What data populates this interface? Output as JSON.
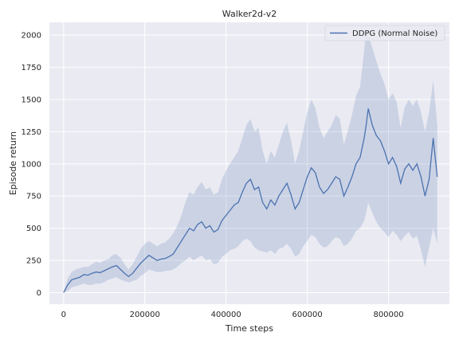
{
  "chart_data": {
    "type": "line",
    "title": "Walker2d-v2",
    "xlabel": "Time steps",
    "ylabel": "Episode return",
    "xlim": [
      -35000,
      950000
    ],
    "ylim": [
      -90,
      2100
    ],
    "x_ticks": [
      0,
      200000,
      400000,
      600000,
      800000
    ],
    "x_tick_labels": [
      "0",
      "200000",
      "400000",
      "600000",
      "800000"
    ],
    "y_ticks": [
      0,
      250,
      500,
      750,
      1000,
      1250,
      1500,
      1750,
      2000
    ],
    "y_tick_labels": [
      "0",
      "250",
      "500",
      "750",
      "1000",
      "1250",
      "1500",
      "1750",
      "2000"
    ],
    "grid": true,
    "legend_position": "top-right",
    "colors": {
      "background": "#eaeaf2",
      "grid": "#ffffff",
      "line": "#4c72b0",
      "band": "#4c72b0"
    },
    "series": [
      {
        "name": "DDPG (Normal Noise)",
        "x": [
          0,
          10000,
          20000,
          30000,
          40000,
          50000,
          60000,
          70000,
          80000,
          90000,
          100000,
          110000,
          120000,
          130000,
          140000,
          150000,
          160000,
          170000,
          180000,
          190000,
          200000,
          210000,
          220000,
          230000,
          240000,
          250000,
          260000,
          270000,
          280000,
          290000,
          300000,
          310000,
          320000,
          330000,
          340000,
          350000,
          360000,
          370000,
          380000,
          390000,
          400000,
          410000,
          420000,
          430000,
          440000,
          450000,
          460000,
          470000,
          480000,
          490000,
          500000,
          510000,
          520000,
          530000,
          540000,
          550000,
          560000,
          570000,
          580000,
          590000,
          600000,
          610000,
          620000,
          630000,
          640000,
          650000,
          660000,
          670000,
          680000,
          690000,
          700000,
          710000,
          720000,
          730000,
          740000,
          745000,
          750000,
          760000,
          770000,
          780000,
          790000,
          800000,
          810000,
          820000,
          830000,
          840000,
          850000,
          860000,
          870000,
          880000,
          890000,
          900000,
          910000,
          920000
        ],
        "y": [
          0,
          60,
          100,
          110,
          120,
          140,
          135,
          150,
          160,
          155,
          170,
          185,
          200,
          210,
          180,
          150,
          125,
          150,
          190,
          230,
          260,
          290,
          270,
          250,
          260,
          265,
          280,
          300,
          350,
          400,
          450,
          500,
          480,
          530,
          550,
          500,
          520,
          470,
          490,
          560,
          600,
          640,
          680,
          700,
          780,
          850,
          880,
          800,
          820,
          700,
          650,
          720,
          680,
          750,
          800,
          850,
          760,
          650,
          700,
          800,
          900,
          970,
          930,
          820,
          770,
          800,
          850,
          900,
          880,
          750,
          820,
          900,
          1000,
          1050,
          1200,
          1300,
          1430,
          1300,
          1220,
          1180,
          1100,
          1000,
          1050,
          980,
          850,
          960,
          1000,
          950,
          1000,
          900,
          750,
          880,
          1200,
          900
        ],
        "lower": [
          0,
          10,
          40,
          50,
          60,
          70,
          60,
          60,
          70,
          70,
          80,
          100,
          110,
          120,
          100,
          90,
          80,
          90,
          100,
          130,
          150,
          180,
          170,
          160,
          160,
          170,
          170,
          180,
          200,
          230,
          250,
          280,
          250,
          270,
          290,
          250,
          260,
          220,
          230,
          280,
          300,
          330,
          340,
          360,
          400,
          420,
          400,
          350,
          330,
          320,
          310,
          330,
          300,
          340,
          350,
          380,
          340,
          280,
          300,
          360,
          400,
          450,
          430,
          380,
          350,
          360,
          400,
          430,
          420,
          360,
          380,
          420,
          480,
          500,
          560,
          620,
          700,
          620,
          550,
          500,
          470,
          430,
          480,
          450,
          400,
          440,
          470,
          420,
          440,
          330,
          200,
          350,
          500,
          380
        ],
        "upper": [
          0,
          110,
          160,
          180,
          190,
          200,
          200,
          220,
          240,
          230,
          250,
          260,
          290,
          300,
          270,
          220,
          180,
          220,
          280,
          340,
          380,
          400,
          380,
          360,
          380,
          390,
          420,
          460,
          520,
          600,
          700,
          780,
          760,
          820,
          860,
          800,
          820,
          760,
          780,
          880,
          950,
          1000,
          1050,
          1100,
          1200,
          1300,
          1350,
          1250,
          1280,
          1100,
          1000,
          1100,
          1050,
          1150,
          1250,
          1320,
          1180,
          1000,
          1100,
          1250,
          1400,
          1500,
          1430,
          1280,
          1200,
          1250,
          1300,
          1380,
          1350,
          1150,
          1260,
          1380,
          1530,
          1600,
          1880,
          2050,
          2000,
          1900,
          1800,
          1700,
          1620,
          1500,
          1550,
          1480,
          1280,
          1440,
          1500,
          1450,
          1500,
          1400,
          1250,
          1400,
          1650,
          1300
        ]
      }
    ]
  }
}
